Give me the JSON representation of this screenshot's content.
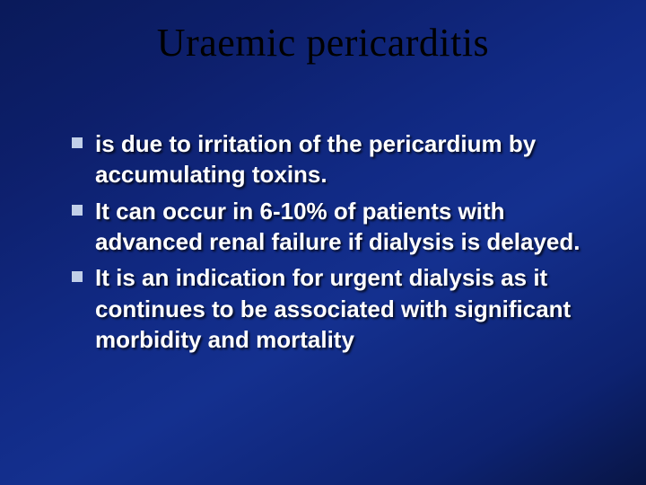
{
  "slide": {
    "title": "Uraemic pericarditis",
    "bullets": [
      "is due to irritation of the pericardium by accumulating toxins.",
      "It can occur in 6-10% of patients with advanced renal failure if dialysis is delayed.",
      "It is an indication for urgent dialysis as it continues to be associated with significant morbidity and mortality"
    ],
    "colors": {
      "background_gradient_start": "#0a1a5a",
      "background_gradient_end": "#081545",
      "title_color": "#000000",
      "body_text_color": "#ffffff",
      "bullet_color": "#c1cfe8"
    },
    "typography": {
      "title_font": "Times New Roman",
      "title_fontsize": 44,
      "body_font": "Arial",
      "body_fontsize": 26,
      "body_fontweight": "bold"
    }
  }
}
